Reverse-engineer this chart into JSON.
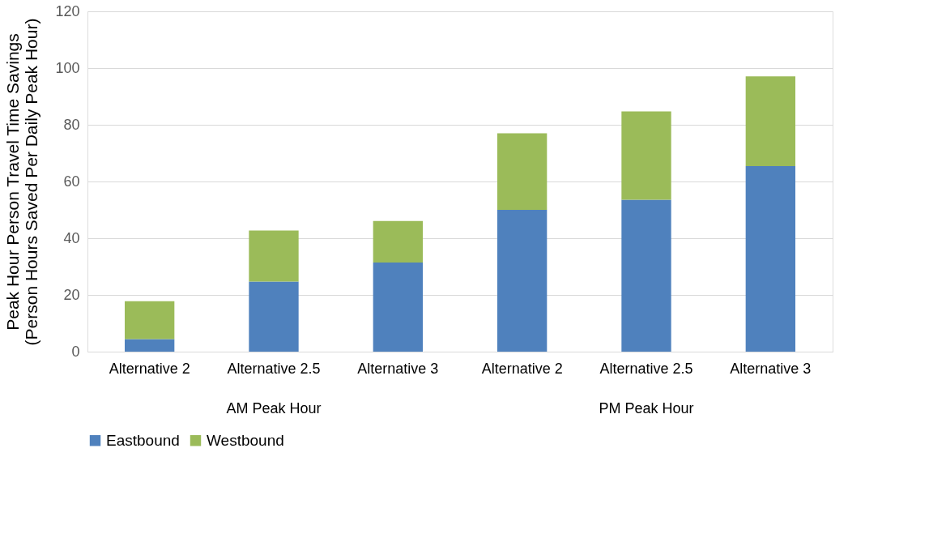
{
  "chart_data": {
    "type": "bar",
    "stacked": true,
    "ylabel": "Peak Hour Person Travel Time Savings\n(Person Hours Saved Per Daily Peak Hour)",
    "categories": [
      "Alternative 2",
      "Alternative 2.5",
      "Alternative 3",
      "Alternative 2",
      "Alternative 2.5",
      "Alternative 3"
    ],
    "annotations": [
      "AM Peak Hour",
      "PM Peak Hour"
    ],
    "series": [
      {
        "name": "Eastbound",
        "color": "#4f81bd",
        "values": [
          4.4,
          24.7,
          31.4,
          50.0,
          53.6,
          65.4
        ]
      },
      {
        "name": "Westbound",
        "color": "#9bbb59",
        "values": [
          13.4,
          18.0,
          14.7,
          27.0,
          31.1,
          31.7
        ]
      }
    ],
    "ylim": [
      0,
      120
    ],
    "yticks": [
      0,
      20,
      40,
      60,
      80,
      100,
      120
    ],
    "grid": "y",
    "legend": "bottom"
  }
}
